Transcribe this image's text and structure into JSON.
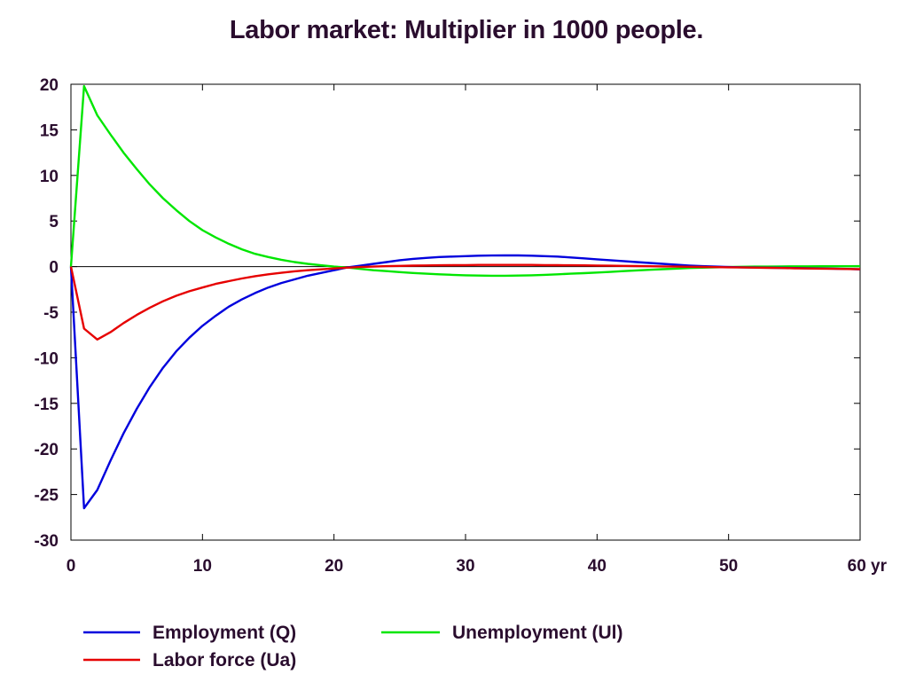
{
  "chart_data": {
    "type": "line",
    "title": "Labor market: Multiplier in 1000 people.",
    "x_unit_label": "yr",
    "xlim": [
      0,
      60
    ],
    "ylim": [
      -30,
      20
    ],
    "x_ticks": [
      0,
      10,
      20,
      30,
      40,
      50,
      60
    ],
    "x_tick_labels": [
      "0",
      "10",
      "20",
      "30",
      "40",
      "50",
      "60 yr"
    ],
    "y_ticks": [
      20,
      15,
      10,
      5,
      0,
      -5,
      -10,
      -15,
      -20,
      -25,
      -30
    ],
    "y_tick_labels": [
      "20",
      "15",
      "10",
      "5",
      "0",
      "-5",
      "-10",
      "-15",
      "-20",
      "-25",
      "-30"
    ],
    "grid": false,
    "zero_line": true,
    "legend_position": "bottom",
    "x": [
      0,
      1,
      2,
      3,
      4,
      5,
      6,
      7,
      8,
      9,
      10,
      11,
      12,
      13,
      14,
      15,
      16,
      17,
      18,
      19,
      20,
      21,
      22,
      23,
      24,
      25,
      26,
      27,
      28,
      29,
      30,
      31,
      32,
      33,
      34,
      35,
      36,
      37,
      38,
      39,
      40,
      41,
      42,
      43,
      44,
      45,
      46,
      47,
      48,
      49,
      50,
      51,
      52,
      53,
      54,
      55,
      56,
      57,
      58,
      59,
      60
    ],
    "series": [
      {
        "name": "Employment (Q)",
        "color": "#0000dd",
        "values": [
          0,
          -26.5,
          -24.5,
          -21.3,
          -18.3,
          -15.6,
          -13.2,
          -11.1,
          -9.3,
          -7.8,
          -6.5,
          -5.4,
          -4.4,
          -3.6,
          -2.9,
          -2.3,
          -1.8,
          -1.4,
          -1.0,
          -0.7,
          -0.4,
          -0.1,
          0.1,
          0.3,
          0.5,
          0.7,
          0.85,
          0.95,
          1.05,
          1.1,
          1.15,
          1.2,
          1.22,
          1.23,
          1.23,
          1.2,
          1.15,
          1.1,
          1.0,
          0.9,
          0.8,
          0.7,
          0.6,
          0.5,
          0.4,
          0.3,
          0.2,
          0.12,
          0.05,
          0.0,
          -0.05,
          -0.08,
          -0.1,
          -0.12,
          -0.14,
          -0.16,
          -0.18,
          -0.2,
          -0.22,
          -0.25,
          -0.3
        ]
      },
      {
        "name": "Unemployment (Ul)",
        "color": "#00e600",
        "values": [
          0,
          19.8,
          16.6,
          14.5,
          12.5,
          10.7,
          9.0,
          7.5,
          6.2,
          5.0,
          4.0,
          3.2,
          2.5,
          1.9,
          1.4,
          1.05,
          0.75,
          0.5,
          0.3,
          0.15,
          0.0,
          -0.1,
          -0.25,
          -0.4,
          -0.5,
          -0.6,
          -0.7,
          -0.78,
          -0.85,
          -0.9,
          -0.95,
          -0.98,
          -1.0,
          -1.0,
          -0.98,
          -0.95,
          -0.9,
          -0.85,
          -0.78,
          -0.72,
          -0.65,
          -0.58,
          -0.5,
          -0.42,
          -0.35,
          -0.28,
          -0.22,
          -0.16,
          -0.12,
          -0.08,
          -0.05,
          -0.02,
          0.0,
          0.0,
          0.02,
          0.03,
          0.03,
          0.04,
          0.04,
          0.04,
          0.05
        ]
      },
      {
        "name": "Labor force (Ua)",
        "color": "#e60000",
        "values": [
          0,
          -6.8,
          -8.0,
          -7.2,
          -6.2,
          -5.3,
          -4.5,
          -3.8,
          -3.2,
          -2.7,
          -2.3,
          -1.9,
          -1.6,
          -1.3,
          -1.05,
          -0.85,
          -0.68,
          -0.52,
          -0.4,
          -0.3,
          -0.2,
          -0.12,
          -0.05,
          0.0,
          0.05,
          0.08,
          0.11,
          0.13,
          0.15,
          0.16,
          0.17,
          0.18,
          0.18,
          0.18,
          0.18,
          0.18,
          0.17,
          0.16,
          0.15,
          0.14,
          0.12,
          0.1,
          0.08,
          0.06,
          0.04,
          0.02,
          0.0,
          -0.02,
          -0.04,
          -0.06,
          -0.08,
          -0.1,
          -0.12,
          -0.14,
          -0.16,
          -0.18,
          -0.2,
          -0.22,
          -0.24,
          -0.26,
          -0.28
        ]
      }
    ],
    "legend": [
      {
        "name": "Employment (Q)",
        "color": "#0000dd"
      },
      {
        "name": "Unemployment (Ul)",
        "color": "#00e600"
      },
      {
        "name": "Labor force (Ua)",
        "color": "#e60000"
      }
    ]
  }
}
